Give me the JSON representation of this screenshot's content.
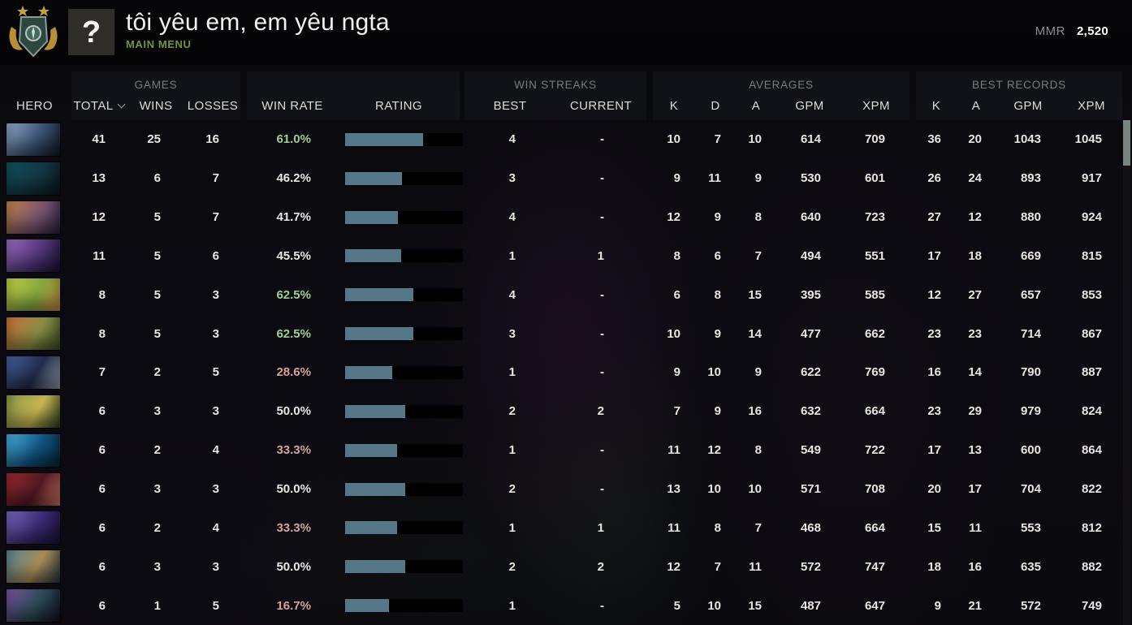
{
  "header": {
    "title": "tôi yêu em, em yêu ngta",
    "subtitle": "MAIN MENU",
    "avatar_glyph": "?",
    "mmr_label": "MMR",
    "mmr_value": "2,520"
  },
  "colors": {
    "accent_green": "#74923e",
    "win_rate_high": "#9fce94",
    "win_rate_mid": "#e9e7e3",
    "win_rate_low": "#d7a29c",
    "rating_fill": "#557787",
    "rating_track": "#000000",
    "scrollbar_thumb": "#76867f"
  },
  "table": {
    "group_headers": {
      "games": "GAMES",
      "win_streaks": "WIN STREAKS",
      "averages": "AVERAGES",
      "best_records": "BEST RECORDS"
    },
    "columns": {
      "hero": "HERO",
      "total": "TOTAL",
      "wins": "WINS",
      "losses": "LOSSES",
      "win_rate": "WIN RATE",
      "rating": "RATING",
      "best": "BEST",
      "current": "CURRENT",
      "k": "K",
      "d": "D",
      "a": "A",
      "gpm": "GPM",
      "xpm": "XPM"
    },
    "sort_column": "total",
    "rows": [
      {
        "hero": "drow-ranger",
        "total": "41",
        "wins": "25",
        "losses": "16",
        "win_rate": "61.0%",
        "win_rate_tone": "win_rate_high",
        "rating_percent": 66,
        "streak_best": "4",
        "streak_current": "-",
        "avg": {
          "k": "10",
          "d": "7",
          "a": "10",
          "gpm": "614",
          "xpm": "709"
        },
        "best": {
          "k": "36",
          "a": "20",
          "gpm": "1043",
          "xpm": "1045"
        },
        "icon_colors": [
          "#8fa9c6",
          "#3b5272",
          "#101826"
        ]
      },
      {
        "hero": "phantom-assassin",
        "total": "13",
        "wins": "6",
        "losses": "7",
        "win_rate": "46.2%",
        "win_rate_tone": "win_rate_mid",
        "rating_percent": 48.5,
        "streak_best": "3",
        "streak_current": "-",
        "avg": {
          "k": "9",
          "d": "11",
          "a": "9",
          "gpm": "530",
          "xpm": "601"
        },
        "best": {
          "k": "26",
          "a": "24",
          "gpm": "893",
          "xpm": "917"
        },
        "icon_colors": [
          "#11505e",
          "#153744",
          "#071820"
        ]
      },
      {
        "hero": "anti-mage",
        "total": "12",
        "wins": "5",
        "losses": "7",
        "win_rate": "41.7%",
        "win_rate_tone": "win_rate_mid",
        "rating_percent": 44.5,
        "streak_best": "4",
        "streak_current": "-",
        "avg": {
          "k": "12",
          "d": "9",
          "a": "8",
          "gpm": "640",
          "xpm": "723"
        },
        "best": {
          "k": "27",
          "a": "12",
          "gpm": "880",
          "xpm": "924"
        },
        "icon_colors": [
          "#c08448",
          "#7a5570",
          "#2b2040"
        ]
      },
      {
        "hero": "night-stalker",
        "total": "11",
        "wins": "5",
        "losses": "6",
        "win_rate": "45.5%",
        "win_rate_tone": "win_rate_mid",
        "rating_percent": 47.8,
        "streak_best": "1",
        "streak_current": "1",
        "avg": {
          "k": "8",
          "d": "6",
          "a": "7",
          "gpm": "494",
          "xpm": "551"
        },
        "best": {
          "k": "17",
          "a": "18",
          "gpm": "669",
          "xpm": "815"
        },
        "icon_colors": [
          "#9a6cc0",
          "#53367a",
          "#1b1138"
        ]
      },
      {
        "hero": "hoodwink",
        "total": "8",
        "wins": "5",
        "losses": "3",
        "win_rate": "62.5%",
        "win_rate_tone": "win_rate_high",
        "rating_percent": 57.7,
        "streak_best": "4",
        "streak_current": "-",
        "avg": {
          "k": "6",
          "d": "8",
          "a": "15",
          "gpm": "395",
          "xpm": "585"
        },
        "best": {
          "k": "12",
          "a": "27",
          "gpm": "657",
          "xpm": "853"
        },
        "icon_colors": [
          "#c2cf45",
          "#86a83e",
          "#c78c3e"
        ]
      },
      {
        "hero": "windranger",
        "total": "8",
        "wins": "5",
        "losses": "3",
        "win_rate": "62.5%",
        "win_rate_tone": "win_rate_high",
        "rating_percent": 57.7,
        "streak_best": "3",
        "streak_current": "-",
        "avg": {
          "k": "10",
          "d": "9",
          "a": "14",
          "gpm": "477",
          "xpm": "662"
        },
        "best": {
          "k": "23",
          "a": "23",
          "gpm": "714",
          "xpm": "867"
        },
        "icon_colors": [
          "#cc7038",
          "#8a8f45",
          "#3d4d22"
        ]
      },
      {
        "hero": "luna",
        "total": "7",
        "wins": "2",
        "losses": "5",
        "win_rate": "28.6%",
        "win_rate_tone": "win_rate_low",
        "rating_percent": 40,
        "streak_best": "1",
        "streak_current": "-",
        "avg": {
          "k": "9",
          "d": "10",
          "a": "9",
          "gpm": "622",
          "xpm": "769"
        },
        "best": {
          "k": "16",
          "a": "14",
          "gpm": "790",
          "xpm": "887"
        },
        "icon_colors": [
          "#44619a",
          "#222c4c",
          "#9aa3b5"
        ]
      },
      {
        "hero": "medusa",
        "total": "6",
        "wins": "3",
        "losses": "3",
        "win_rate": "50.0%",
        "win_rate_tone": "win_rate_mid",
        "rating_percent": 50.8,
        "streak_best": "2",
        "streak_current": "2",
        "avg": {
          "k": "7",
          "d": "9",
          "a": "16",
          "gpm": "632",
          "xpm": "664"
        },
        "best": {
          "k": "23",
          "a": "29",
          "gpm": "979",
          "xpm": "824"
        },
        "icon_colors": [
          "#8a9a44",
          "#c9b653",
          "#2c3c1c"
        ]
      },
      {
        "hero": "morphling",
        "total": "6",
        "wins": "2",
        "losses": "4",
        "win_rate": "33.3%",
        "win_rate_tone": "win_rate_low",
        "rating_percent": 44,
        "streak_best": "1",
        "streak_current": "-",
        "avg": {
          "k": "11",
          "d": "12",
          "a": "8",
          "gpm": "549",
          "xpm": "722"
        },
        "best": {
          "k": "17",
          "a": "13",
          "gpm": "600",
          "xpm": "864"
        },
        "icon_colors": [
          "#49aede",
          "#105480",
          "#062638"
        ]
      },
      {
        "hero": "queen-of-pain",
        "total": "6",
        "wins": "3",
        "losses": "3",
        "win_rate": "50.0%",
        "win_rate_tone": "win_rate_mid",
        "rating_percent": 50.8,
        "streak_best": "2",
        "streak_current": "-",
        "avg": {
          "k": "13",
          "d": "10",
          "a": "10",
          "gpm": "571",
          "xpm": "708"
        },
        "best": {
          "k": "20",
          "a": "17",
          "gpm": "704",
          "xpm": "822"
        },
        "icon_colors": [
          "#9c2a2e",
          "#521824",
          "#d37a64"
        ]
      },
      {
        "hero": "riki",
        "total": "6",
        "wins": "2",
        "losses": "4",
        "win_rate": "33.3%",
        "win_rate_tone": "win_rate_low",
        "rating_percent": 44,
        "streak_best": "1",
        "streak_current": "1",
        "avg": {
          "k": "11",
          "d": "8",
          "a": "7",
          "gpm": "468",
          "xpm": "664"
        },
        "best": {
          "k": "15",
          "a": "11",
          "gpm": "553",
          "xpm": "812"
        },
        "icon_colors": [
          "#7668bc",
          "#3b2a74",
          "#1a1236"
        ]
      },
      {
        "hero": "slardar",
        "total": "6",
        "wins": "3",
        "losses": "3",
        "win_rate": "50.0%",
        "win_rate_tone": "win_rate_mid",
        "rating_percent": 50.8,
        "streak_best": "2",
        "streak_current": "2",
        "avg": {
          "k": "12",
          "d": "7",
          "a": "11",
          "gpm": "572",
          "xpm": "747"
        },
        "best": {
          "k": "18",
          "a": "16",
          "gpm": "635",
          "xpm": "882"
        },
        "icon_colors": [
          "#558699",
          "#a98d55",
          "#24363f"
        ]
      },
      {
        "hero": "spectre",
        "total": "6",
        "wins": "1",
        "losses": "5",
        "win_rate": "16.7%",
        "win_rate_tone": "win_rate_low",
        "rating_percent": 37,
        "streak_best": "1",
        "streak_current": "-",
        "avg": {
          "k": "5",
          "d": "10",
          "a": "15",
          "gpm": "487",
          "xpm": "647"
        },
        "best": {
          "k": "9",
          "a": "21",
          "gpm": "572",
          "xpm": "749"
        },
        "icon_colors": [
          "#7a55a0",
          "#2a4a55",
          "#170d26"
        ]
      }
    ]
  }
}
